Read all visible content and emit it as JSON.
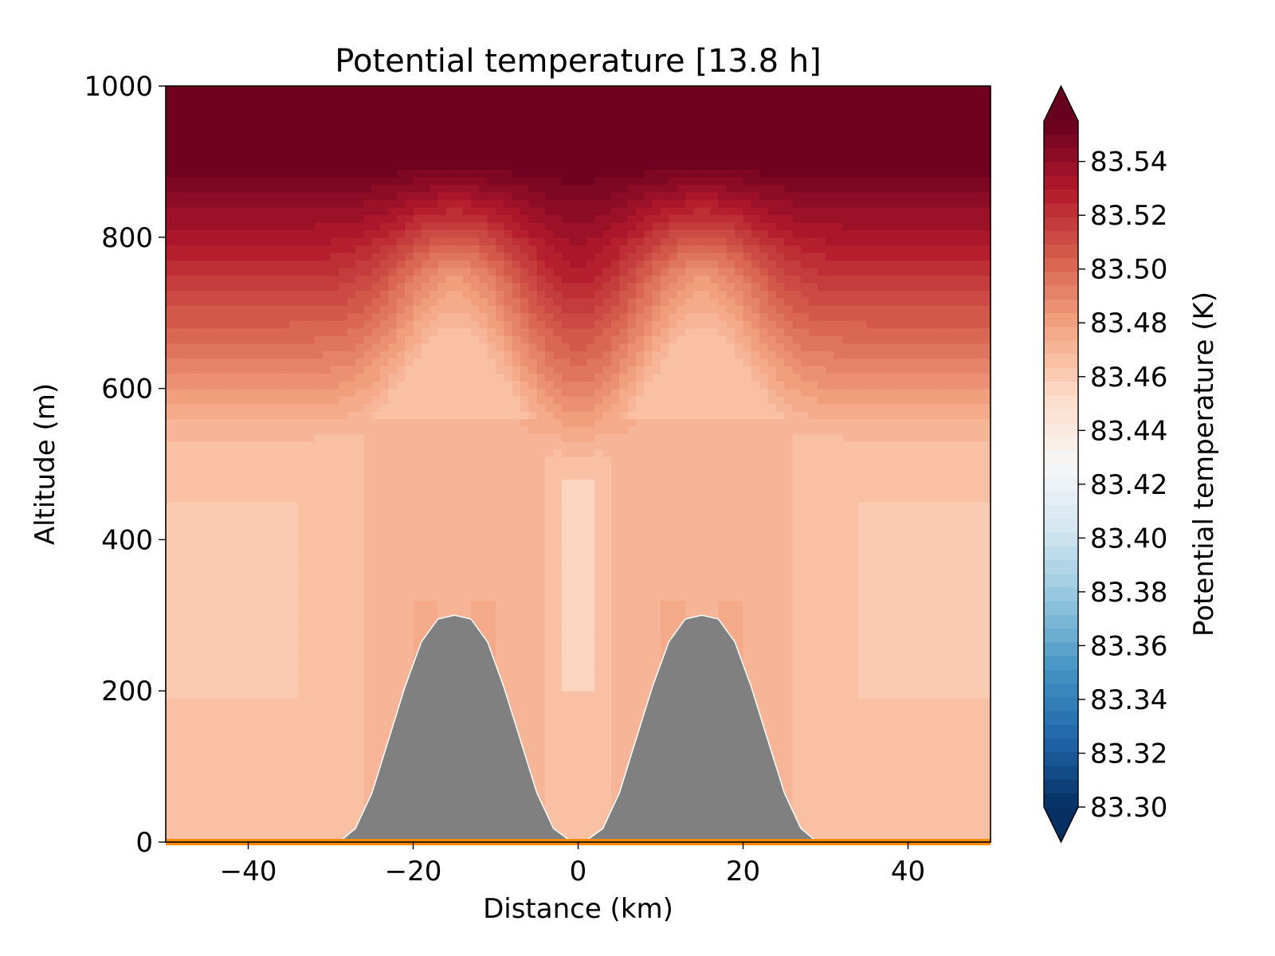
{
  "chart_data": {
    "type": "heatmap",
    "title": "Potential temperature [13.8 h]",
    "xlabel": "Distance (km)",
    "ylabel": "Altitude (m)",
    "xlim": [
      -50,
      50
    ],
    "ylim": [
      0,
      1000
    ],
    "x_ticks": [
      -40,
      -20,
      0,
      20,
      40
    ],
    "x_tick_labels": [
      "−40",
      "−20",
      "0",
      "20",
      "40"
    ],
    "y_ticks": [
      0,
      200,
      400,
      600,
      800,
      1000
    ],
    "y_tick_labels": [
      "0",
      "200",
      "400",
      "600",
      "800",
      "1000"
    ],
    "colormap": "RdBu_r",
    "colorbar": {
      "label": "Potential temperature (K)",
      "min": 83.3,
      "max": 83.555,
      "levels": 51,
      "extend": "both",
      "ticks": [
        83.3,
        83.32,
        83.34,
        83.36,
        83.38,
        83.4,
        83.42,
        83.44,
        83.46,
        83.48,
        83.5,
        83.52,
        83.54
      ],
      "tick_labels": [
        "83.30",
        "83.32",
        "83.34",
        "83.36",
        "83.38",
        "83.40",
        "83.42",
        "83.44",
        "83.46",
        "83.48",
        "83.50",
        "83.52",
        "83.54"
      ]
    },
    "terrain": {
      "color": "#808080",
      "ground_line_color": "#ff8c00",
      "x": [
        -50,
        -29,
        -27,
        -25,
        -23,
        -21,
        -19,
        -17,
        -15,
        -13,
        -11,
        -9,
        -7,
        -5,
        -3,
        -1,
        1,
        3,
        5,
        7,
        9,
        11,
        13,
        15,
        17,
        19,
        21,
        23,
        25,
        27,
        29,
        50
      ],
      "altitude": [
        0,
        0,
        18,
        65,
        135,
        205,
        265,
        295,
        300,
        295,
        265,
        205,
        135,
        65,
        18,
        2,
        2,
        18,
        65,
        135,
        205,
        265,
        295,
        300,
        295,
        265,
        205,
        135,
        65,
        18,
        0,
        0
      ]
    },
    "field_summary": {
      "ridge_crest_km": [
        -15,
        15
      ],
      "surface_layer_temperature_k": 83.465,
      "top_temperature_k": 83.555
    }
  }
}
